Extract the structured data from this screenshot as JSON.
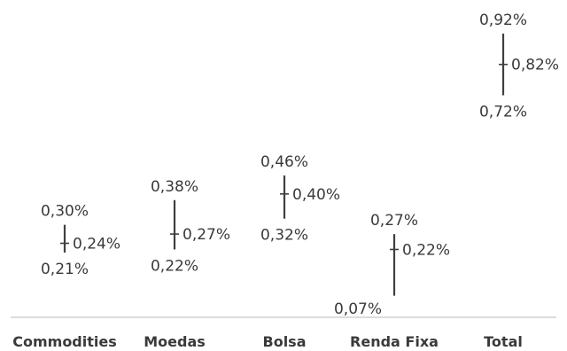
{
  "chart_data": {
    "type": "range",
    "title": "",
    "xlabel": "",
    "ylabel": "",
    "ylim": [
      0.0,
      0.96
    ],
    "grid": false,
    "legend": "none",
    "categories": [
      "Commodities",
      "Moedas",
      "Bolsa",
      "Renda Fixa",
      "Total"
    ],
    "series": [
      {
        "values_high": [
          0.3,
          0.38,
          0.46,
          0.27,
          0.92
        ],
        "values_mid": [
          0.24,
          0.27,
          0.4,
          0.22,
          0.82
        ],
        "values_low": [
          0.21,
          0.22,
          0.32,
          0.07,
          0.72
        ]
      }
    ],
    "labels": {
      "high": [
        "0,30%",
        "0,38%",
        "0,46%",
        "0,27%",
        "0,92%"
      ],
      "mid": [
        "0,24%",
        "0,27%",
        "0,40%",
        "0,22%",
        "0,82%"
      ],
      "low": [
        "0,21%",
        "0,22%",
        "0,32%",
        "0,07%",
        "0,72%"
      ]
    },
    "colors": {
      "line": "#3f3f3f",
      "text": "#3a3a3a",
      "axis": "#d0d0d0"
    }
  }
}
